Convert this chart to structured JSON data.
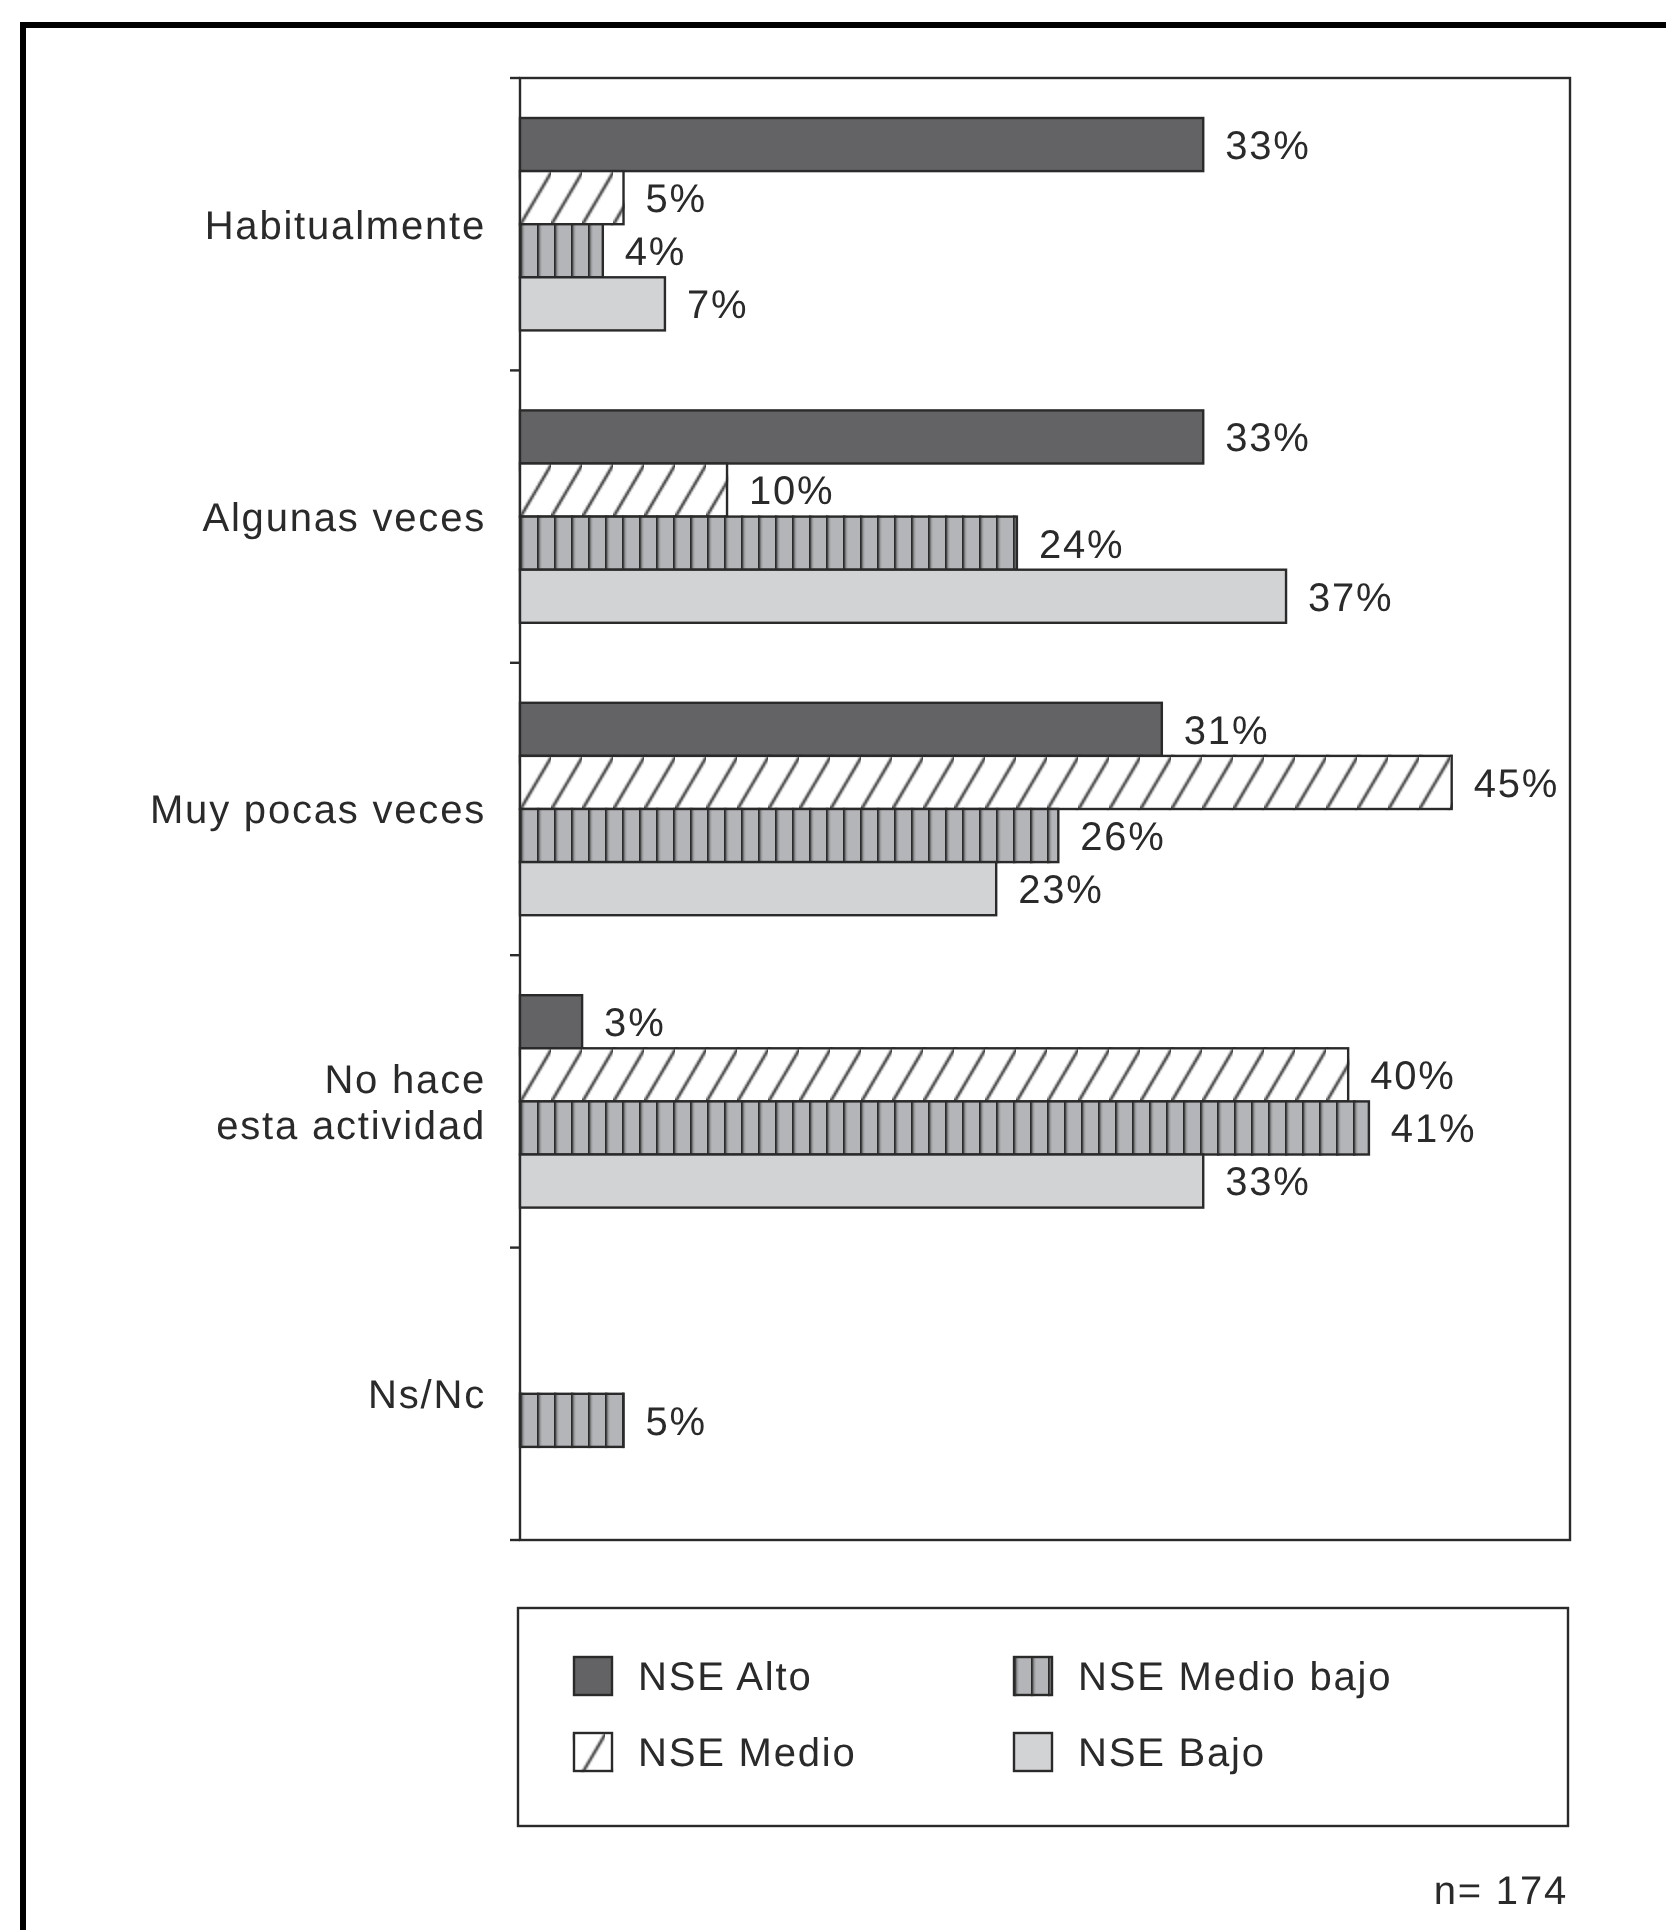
{
  "chart_data": {
    "type": "bar",
    "orientation": "horizontal",
    "categories": [
      "Habitualmente",
      "Algunas veces",
      "Muy pocas veces",
      "No hace\nesta actividad",
      "Ns/Nc"
    ],
    "series": [
      {
        "name": "NSE Alto",
        "color": "#636365",
        "values": [
          33,
          33,
          31,
          3,
          null
        ],
        "value_labels": [
          "33%",
          "33%",
          "31%",
          "3%",
          null
        ]
      },
      {
        "name": "NSE Medio",
        "color": "#ffffff",
        "values": [
          5,
          10,
          45,
          40,
          null
        ],
        "value_labels": [
          "5%",
          "10%",
          "45%",
          "40%",
          null
        ]
      },
      {
        "name": "NSE Medio bajo",
        "color": "#b4b5b8",
        "values": [
          4,
          24,
          26,
          41,
          5
        ],
        "value_labels": [
          "4%",
          "24%",
          "26%",
          "41%",
          "5%"
        ]
      },
      {
        "name": "NSE Bajo",
        "color": "#d2d3d5",
        "values": [
          7,
          37,
          23,
          33,
          null
        ],
        "value_labels": [
          "7%",
          "37%",
          "23%",
          "33%",
          null
        ]
      }
    ],
    "legend": "bottom",
    "annotations": [
      "n= 174"
    ]
  }
}
